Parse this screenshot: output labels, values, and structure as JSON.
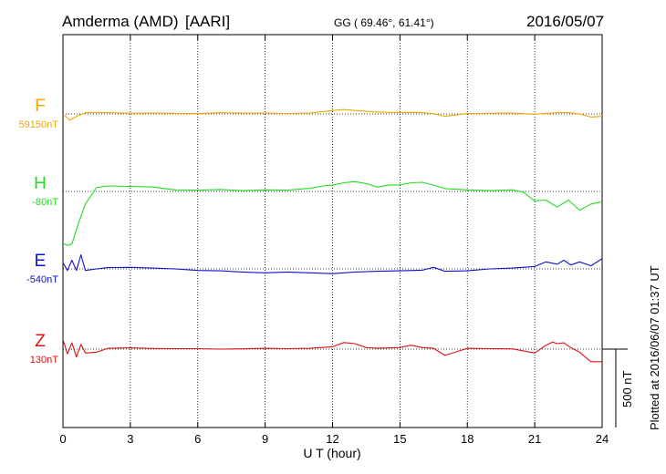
{
  "header": {
    "station": "Amderma (AMD)",
    "network": "[AARI]",
    "coords": "GG ( 69.46°,  61.41°)",
    "date": "2016/05/07"
  },
  "side_note": "Plotted at 2016/06/07 01:37 UT",
  "colors": {
    "F": "#f0a800",
    "H": "#22dd22",
    "E": "#1010cc",
    "Z": "#dd1010"
  },
  "chart_data": {
    "type": "line",
    "xlabel": "U T (hour)",
    "xlim": [
      0,
      24
    ],
    "xticks": [
      "0",
      "3",
      "6",
      "9",
      "12",
      "15",
      "18",
      "21",
      "24"
    ],
    "scale_bar": {
      "label": "500 nT",
      "nT": 500
    },
    "components": [
      {
        "letter": "F",
        "baseline": "59150nT",
        "base_nT": 59150
      },
      {
        "letter": "H",
        "baseline": "-80nT",
        "base_nT": -80
      },
      {
        "letter": "E",
        "baseline": "-540nT",
        "base_nT": -540
      },
      {
        "letter": "Z",
        "baseline": "130nT",
        "base_nT": 130
      }
    ],
    "series": [
      {
        "letter": "F",
        "x": [
          0,
          0.3,
          0.6,
          1,
          2,
          3,
          4,
          5,
          6,
          7,
          8,
          9,
          10,
          11,
          12,
          12.5,
          13,
          14,
          15,
          15.5,
          16,
          16.5,
          17,
          18,
          19,
          20,
          21,
          22,
          22.5,
          23,
          23.5,
          24
        ],
        "y": [
          0,
          -40,
          -15,
          8,
          8,
          4,
          5,
          4,
          2,
          8,
          5,
          6,
          3,
          5,
          22,
          28,
          22,
          12,
          8,
          10,
          8,
          2,
          -15,
          3,
          4,
          5,
          -2,
          8,
          8,
          0,
          -20,
          -15
        ]
      },
      {
        "letter": "H",
        "x": [
          0,
          0.2,
          0.4,
          0.7,
          1,
          1.5,
          2,
          3,
          4,
          5,
          6,
          7,
          8,
          9,
          10,
          11,
          11.7,
          12,
          12.5,
          13,
          13.5,
          14,
          14.5,
          15,
          15.5,
          16,
          16.5,
          17,
          18,
          19,
          20,
          20.5,
          21,
          21.5,
          22,
          22.5,
          23,
          23.5,
          24
        ],
        "y": [
          -330,
          -345,
          -335,
          -200,
          -80,
          25,
          35,
          32,
          28,
          10,
          8,
          12,
          5,
          10,
          8,
          20,
          38,
          40,
          55,
          62,
          50,
          28,
          40,
          42,
          55,
          58,
          40,
          18,
          10,
          5,
          10,
          -5,
          -60,
          -55,
          -100,
          -55,
          -120,
          -80,
          -65
        ]
      },
      {
        "letter": "E",
        "x": [
          0,
          0.2,
          0.4,
          0.6,
          0.8,
          1,
          1.5,
          2,
          3,
          4,
          5,
          6,
          7,
          8,
          9,
          10,
          11,
          12,
          12.5,
          13,
          14,
          15,
          16,
          16.5,
          17,
          18,
          19,
          20,
          21,
          21.5,
          22,
          22.3,
          22.6,
          23,
          23.5,
          24
        ],
        "y": [
          40,
          -10,
          55,
          -10,
          90,
          -10,
          0,
          8,
          10,
          5,
          0,
          -10,
          -12,
          -20,
          -25,
          -20,
          -25,
          -30,
          -25,
          -20,
          -15,
          -12,
          -8,
          10,
          -15,
          -12,
          0,
          5,
          15,
          45,
          30,
          55,
          25,
          45,
          20,
          65
        ]
      },
      {
        "letter": "Z",
        "x": [
          0,
          0.2,
          0.4,
          0.6,
          0.8,
          1,
          1.5,
          2,
          3,
          4,
          5,
          6,
          7,
          8,
          9,
          10,
          11,
          12,
          12.5,
          13,
          13.5,
          14,
          15,
          15.5,
          16,
          16.5,
          17,
          18,
          19,
          20,
          21,
          21.5,
          21.8,
          22,
          22.3,
          22.6,
          23,
          23.5,
          24
        ],
        "y": [
          60,
          -30,
          40,
          -50,
          30,
          -25,
          -20,
          5,
          8,
          4,
          3,
          3,
          0,
          2,
          5,
          3,
          5,
          15,
          42,
          35,
          10,
          5,
          10,
          25,
          10,
          5,
          -40,
          5,
          3,
          2,
          -25,
          25,
          45,
          35,
          40,
          10,
          -20,
          -80,
          -80
        ]
      }
    ]
  }
}
